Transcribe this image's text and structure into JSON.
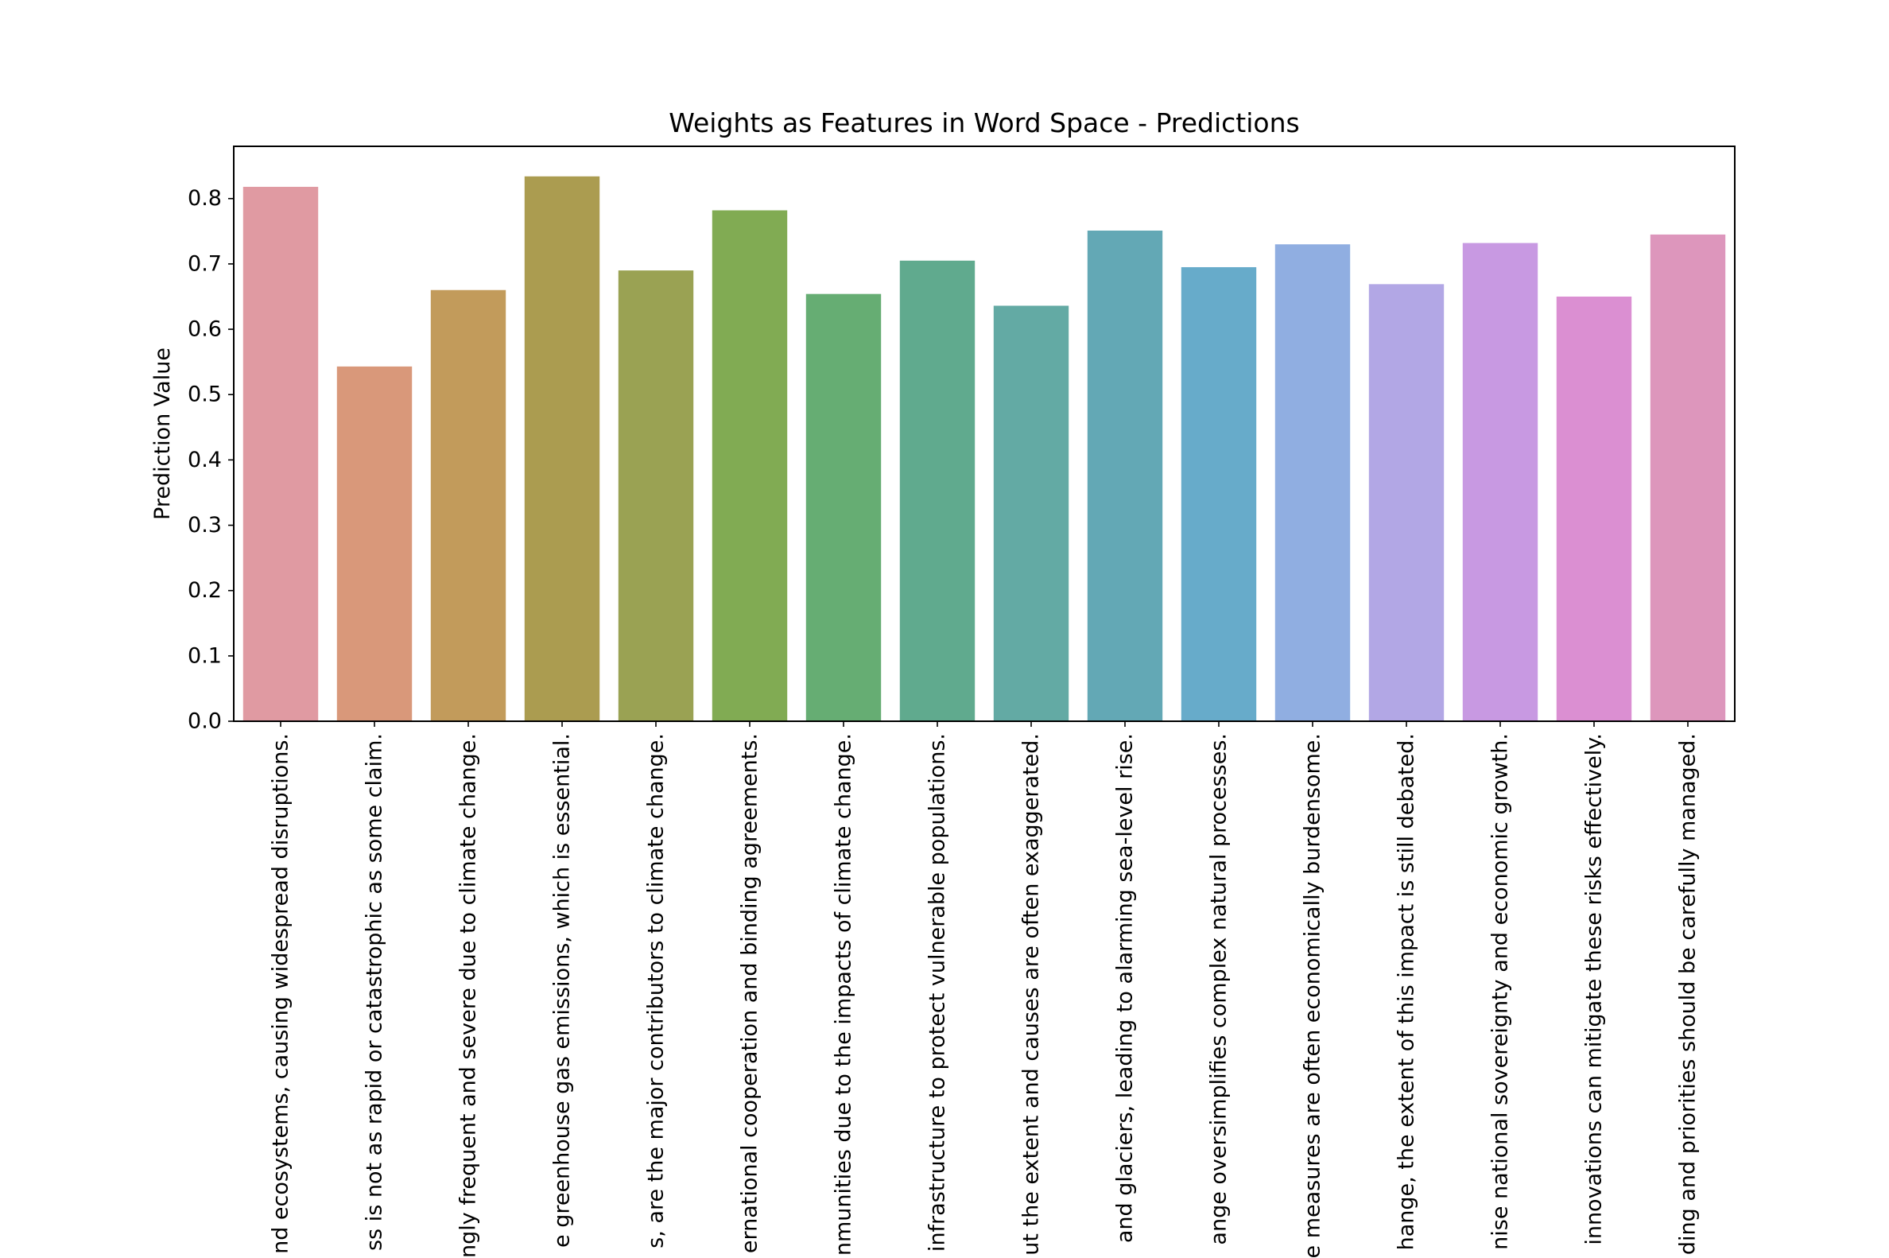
{
  "chart_data": {
    "type": "bar",
    "title": "Weights as Features in Word Space - Predictions",
    "xlabel": "",
    "ylabel": "Prediction Value",
    "ylim": [
      0,
      0.88
    ],
    "yticks": [
      "0.0",
      "0.1",
      "0.2",
      "0.3",
      "0.4",
      "0.5",
      "0.6",
      "0.7",
      "0.8"
    ],
    "grid": false,
    "categories": [
      "nd ecosystems, causing widespread disruptions.",
      "ss is not as rapid or catastrophic as some claim.",
      "ngly frequent and severe due to climate change.",
      "e greenhouse gas emissions, which is essential.",
      "s, are the major contributors to climate change.",
      "ernational cooperation and binding agreements.",
      "nmunities due to the impacts of climate change.",
      "infrastructure to protect vulnerable populations.",
      "ut the extent and causes are often exaggerated.",
      "and glaciers, leading to alarming sea-level rise.",
      "ange oversimplifies complex natural processes.",
      "e measures are often economically burdensome.",
      "hange, the extent of this impact is still debated.",
      "nise national sovereignty and economic growth.",
      "innovations can mitigate these risks effectively.",
      "ding and priorities should be carefully managed."
    ],
    "values": [
      0.818,
      0.543,
      0.66,
      0.834,
      0.69,
      0.782,
      0.654,
      0.705,
      0.636,
      0.751,
      0.695,
      0.73,
      0.669,
      0.732,
      0.65,
      0.745
    ],
    "colors": [
      "#e09aa2",
      "#d9987a",
      "#c29b5b",
      "#ab9c50",
      "#9aa253",
      "#81ab53",
      "#66ad73",
      "#60aa8e",
      "#63aaa4",
      "#63a8b5",
      "#67abca",
      "#90aee1",
      "#b2a7e5",
      "#c899e2",
      "#db8fd2",
      "#dd96bc"
    ]
  }
}
